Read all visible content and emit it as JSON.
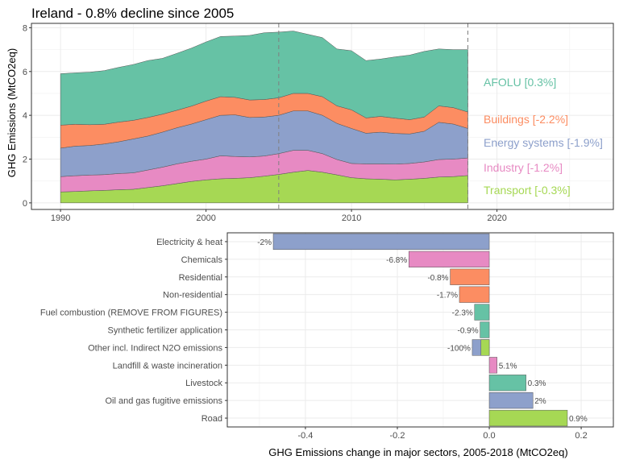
{
  "chart_data": [
    {
      "type": "area",
      "title": "Ireland - 0.8% decline since 2005",
      "xlabel": "",
      "ylabel": "GHG Emissions (MtCO2eq)",
      "xlim": [
        1988,
        2028
      ],
      "ylim": [
        -0.3,
        8.2
      ],
      "xticks": [
        1990,
        2000,
        2010,
        2020
      ],
      "yticks": [
        0,
        2,
        4,
        6,
        8
      ],
      "vlines": [
        2005,
        2018
      ],
      "grid": true,
      "x": [
        1990,
        1991,
        1992,
        1993,
        1994,
        1995,
        1996,
        1997,
        1998,
        1999,
        2000,
        2001,
        2002,
        2003,
        2004,
        2005,
        2006,
        2007,
        2008,
        2009,
        2010,
        2011,
        2012,
        2013,
        2014,
        2015,
        2016,
        2017,
        2018
      ],
      "series": [
        {
          "name": "Transport [-0.3%]",
          "color": "#a6d854",
          "values": [
            0.5,
            0.52,
            0.55,
            0.57,
            0.6,
            0.62,
            0.7,
            0.78,
            0.88,
            0.98,
            1.05,
            1.1,
            1.12,
            1.15,
            1.22,
            1.3,
            1.4,
            1.48,
            1.4,
            1.28,
            1.15,
            1.1,
            1.08,
            1.05,
            1.08,
            1.12,
            1.18,
            1.2,
            1.25
          ]
        },
        {
          "name": "Industry [-1.2%]",
          "color": "#e78ac3",
          "values": [
            0.7,
            0.72,
            0.72,
            0.72,
            0.74,
            0.75,
            0.8,
            0.85,
            0.9,
            0.92,
            0.95,
            1.05,
            1.0,
            0.95,
            0.92,
            0.95,
            1.0,
            0.92,
            0.85,
            0.7,
            0.65,
            0.68,
            0.7,
            0.72,
            0.72,
            0.75,
            0.8,
            0.8,
            0.8
          ]
        },
        {
          "name": "Energy systems [-1.9%]",
          "color": "#8da0cb",
          "values": [
            1.3,
            1.35,
            1.35,
            1.4,
            1.45,
            1.55,
            1.55,
            1.6,
            1.65,
            1.7,
            1.8,
            1.85,
            1.9,
            1.8,
            1.78,
            1.75,
            1.8,
            1.8,
            1.75,
            1.65,
            1.6,
            1.4,
            1.45,
            1.4,
            1.35,
            1.4,
            1.7,
            1.6,
            1.35
          ]
        },
        {
          "name": "Buildings [-2.2%]",
          "color": "#fc8d62",
          "values": [
            1.05,
            1.0,
            0.95,
            0.9,
            0.9,
            0.85,
            0.85,
            0.82,
            0.8,
            0.82,
            0.85,
            0.85,
            0.8,
            0.8,
            0.8,
            0.8,
            0.8,
            0.8,
            0.85,
            0.8,
            0.85,
            0.7,
            0.72,
            0.7,
            0.65,
            0.65,
            0.75,
            0.75,
            0.75
          ]
        },
        {
          "name": "AFOLU [0.3%]",
          "color": "#66c2a5",
          "values": [
            2.35,
            2.35,
            2.4,
            2.45,
            2.5,
            2.55,
            2.6,
            2.55,
            2.6,
            2.65,
            2.7,
            2.75,
            2.8,
            2.95,
            3.05,
            3.0,
            2.85,
            2.7,
            2.7,
            2.6,
            2.7,
            2.62,
            2.62,
            2.8,
            2.95,
            3.0,
            2.6,
            2.65,
            2.85
          ]
        }
      ]
    },
    {
      "type": "bar",
      "orientation": "horizontal",
      "xlabel": "GHG Emissions change in major sectors, 2005-2018 (MtCO2eq)",
      "ylabel": "",
      "xlim": [
        -0.57,
        0.27
      ],
      "xticks": [
        -0.4,
        -0.2,
        0.0,
        0.2
      ],
      "xtick_labels": [
        "-0.4",
        "-0.2",
        "0.0",
        "0.2"
      ],
      "grid": true,
      "bars": [
        {
          "category": "Electricity & heat",
          "value": -0.47,
          "label": "-2%",
          "color": "#8da0cb"
        },
        {
          "category": "Chemicals",
          "value": -0.175,
          "label": "-6.8%",
          "color": "#e78ac3"
        },
        {
          "category": "Residential",
          "value": -0.085,
          "label": "-0.8%",
          "color": "#fc8d62"
        },
        {
          "category": "Non-residential",
          "value": -0.065,
          "label": "-1.7%",
          "color": "#fc8d62"
        },
        {
          "category": "Fuel combustion (REMOVE FROM FIGURES)",
          "value": -0.032,
          "label": "-2.3%",
          "color": "#66c2a5"
        },
        {
          "category": "Synthetic fertilizer application",
          "value": -0.02,
          "label": "-0.9%",
          "color": "#66c2a5"
        },
        {
          "category": "Other incl. Indirect N2O emissions",
          "value": -0.037,
          "label": "-100%",
          "color": "#8da0cb",
          "extra": {
            "value": -0.018,
            "color": "#a6d854"
          }
        },
        {
          "category": "Landfill & waste incineration",
          "value": 0.017,
          "label": "5.1%",
          "color": "#e78ac3"
        },
        {
          "category": "Livestock",
          "value": 0.08,
          "label": "0.3%",
          "color": "#66c2a5"
        },
        {
          "category": "Oil and gas fugitive emissions",
          "value": 0.095,
          "label": "2%",
          "color": "#8da0cb"
        },
        {
          "category": "Road",
          "value": 0.17,
          "label": "0.9%",
          "color": "#a6d854"
        }
      ]
    }
  ]
}
